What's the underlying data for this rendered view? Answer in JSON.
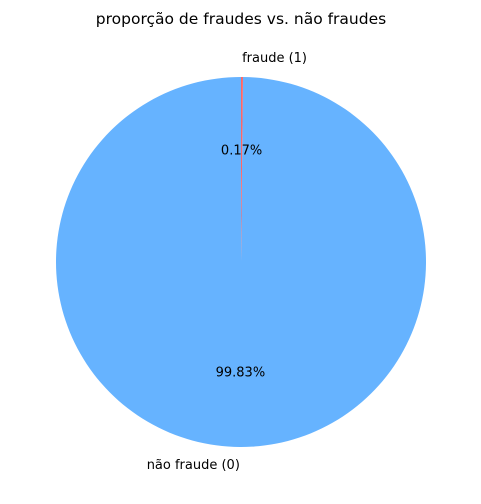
{
  "chart_data": {
    "type": "pie",
    "title": "proporção de fraudes vs. não fraudes",
    "slices": [
      {
        "label": "não fraude (0)",
        "value": 99.83,
        "pct_label": "99.83%",
        "color": "#66b3ff"
      },
      {
        "label": "fraude (1)",
        "value": 0.17,
        "pct_label": "0.17%",
        "color": "#ff6666"
      }
    ],
    "start_angle": 90,
    "direction": "counterclockwise",
    "legend": "none"
  }
}
